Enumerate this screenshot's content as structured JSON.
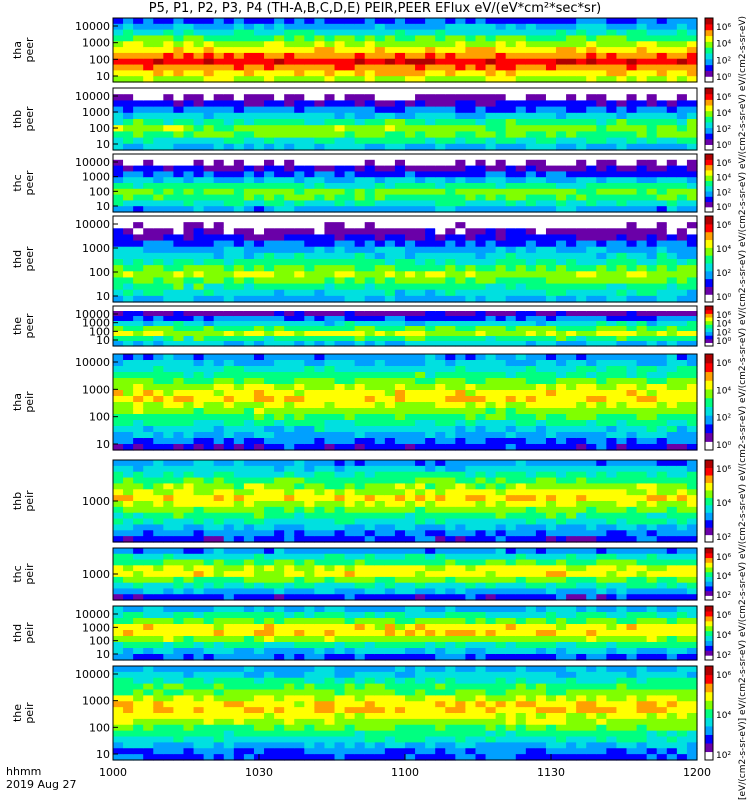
{
  "chart_data": {
    "type": "heatmap",
    "title": "P5, P1, P2, P3, P4 (TH-A,B,C,D,E) PEIR,PEER EFlux eV/(eV*cm²*sec*sr)",
    "colorbar_label": "[eV/(cm2-s-sr-eV)] eV/(cm2-s-sr-eV) eV/(cm2-s-sr-eV) eV/(cm2-s-sr-eV) eV/(cm2-s-sr-eV) eV/(cm2-s-sr-eV) eV/(cm2-s-sr-eV) eV/(cm2-s-sr-eV) eV/(cm2-s-sr-eV) eV/(cm2-s-sr-eV)",
    "x_ticks": [
      "1000",
      "1030",
      "1100",
      "1130",
      "1200"
    ],
    "x_range_minutes": [
      0,
      120
    ],
    "footer": {
      "line1": "hhmm",
      "line2": "2019 Aug 27"
    },
    "y_scale": "log",
    "colorbar_scale": "log",
    "colorbar_colors": [
      "#ffffff",
      "#6a00a8",
      "#0000ff",
      "#00a0ff",
      "#00e0e0",
      "#00ff80",
      "#80ff00",
      "#ffff00",
      "#ffa000",
      "#ff0000",
      "#b00000"
    ],
    "panels": [
      {
        "id": "tha-peer",
        "probe": "tha",
        "species": "peer",
        "ylabel": [
          "tha",
          "peer"
        ],
        "y_ticks": [
          "10000",
          "1000",
          "100",
          "10"
        ],
        "colorbar_ticks": [
          "10⁶",
          "10⁴",
          "10²",
          "10⁰"
        ],
        "mean_level": 0.88
      },
      {
        "id": "thb-peer",
        "probe": "thb",
        "species": "peer",
        "ylabel": [
          "thb",
          "peer"
        ],
        "y_ticks": [
          "10000",
          "1000",
          "100",
          "10"
        ],
        "colorbar_ticks": [
          "10⁶",
          "10⁴",
          "10²",
          "10⁰"
        ],
        "mean_level": 0.62
      },
      {
        "id": "thc-peer",
        "probe": "thc",
        "species": "peer",
        "ylabel": [
          "thc",
          "peer"
        ],
        "y_ticks": [
          "10000",
          "1000",
          "100",
          "10"
        ],
        "colorbar_ticks": [
          "10⁶",
          "10⁴",
          "10²",
          "10⁰"
        ],
        "mean_level": 0.6
      },
      {
        "id": "thd-peer",
        "probe": "thd",
        "species": "peer",
        "ylabel": [
          "thd",
          "peer"
        ],
        "y_ticks": [
          "10000",
          "1000",
          "100",
          "10"
        ],
        "colorbar_ticks": [
          "10⁶",
          "10⁴",
          "10²",
          "10⁰"
        ],
        "mean_level": 0.62
      },
      {
        "id": "the-peer",
        "probe": "the",
        "species": "peer",
        "ylabel": [
          "the",
          "peer"
        ],
        "y_ticks": [
          "10000",
          "1000",
          "100",
          "10"
        ],
        "colorbar_ticks": [
          "10⁶",
          "10⁴",
          "10²",
          "10⁰"
        ],
        "mean_level": 0.65
      },
      {
        "id": "tha-peir",
        "probe": "tha",
        "species": "peir",
        "ylabel": [
          "tha",
          "peir"
        ],
        "y_ticks": [
          "10000",
          "1000",
          "100",
          "10"
        ],
        "colorbar_ticks": [
          "10⁶",
          "10⁴",
          "10²",
          "10⁰"
        ],
        "mean_level": 0.72
      },
      {
        "id": "thb-peir",
        "probe": "thb",
        "species": "peir",
        "ylabel": [
          "thb",
          "peir"
        ],
        "y_ticks": [
          "1000"
        ],
        "colorbar_ticks": [
          "10⁶",
          "10⁴",
          "10²"
        ],
        "mean_level": 0.72
      },
      {
        "id": "thc-peir",
        "probe": "thc",
        "species": "peir",
        "ylabel": [
          "thc",
          "peir"
        ],
        "y_ticks": [
          "1000"
        ],
        "colorbar_ticks": [
          "10⁶",
          "10⁴",
          "10²"
        ],
        "mean_level": 0.72
      },
      {
        "id": "thd-peir",
        "probe": "thd",
        "species": "peir",
        "ylabel": [
          "thd",
          "peir"
        ],
        "y_ticks": [
          "10000",
          "1000",
          "100",
          "10"
        ],
        "colorbar_ticks": [
          "10⁶",
          "10⁴",
          "10²"
        ],
        "mean_level": 0.75
      },
      {
        "id": "the-peir",
        "probe": "the",
        "species": "peir",
        "ylabel": [
          "the",
          "peir"
        ],
        "y_ticks": [
          "10000",
          "1000",
          "100",
          "10"
        ],
        "colorbar_ticks": [
          "10⁶",
          "10⁴",
          "10²"
        ],
        "mean_level": 0.74
      }
    ]
  }
}
